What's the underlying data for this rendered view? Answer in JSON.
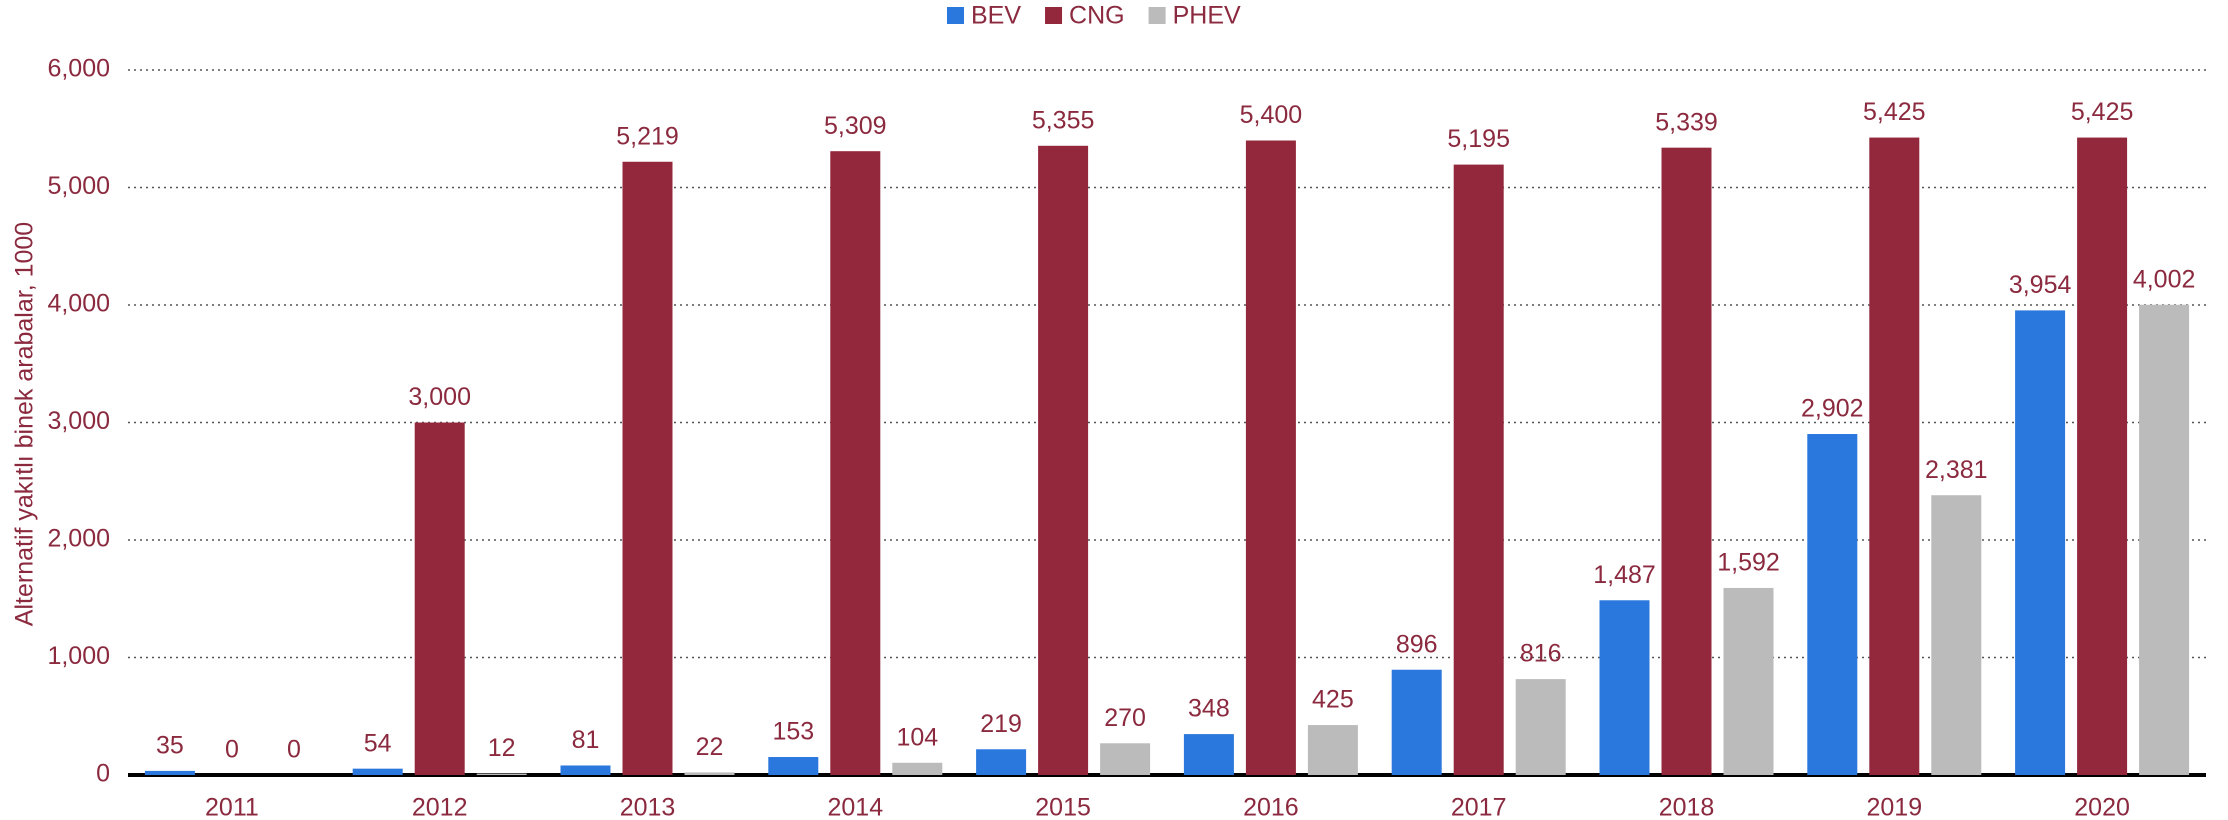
{
  "chart_data": {
    "type": "bar",
    "y_label": "Alternatif yakıtlı binek arabalar, 1000",
    "categories": [
      "2011",
      "2012",
      "2013",
      "2014",
      "2015",
      "2016",
      "2017",
      "2018",
      "2019",
      "2020"
    ],
    "series": [
      {
        "name": "BEV",
        "color": "#2a78dd",
        "values": [
          35,
          54,
          81,
          153,
          219,
          348,
          896,
          1487,
          2902,
          3954
        ],
        "value_labels": [
          "35",
          "54",
          "81",
          "153",
          "219",
          "348",
          "896",
          "1,487",
          "2,902",
          "3,954"
        ]
      },
      {
        "name": "CNG",
        "color": "#93283c",
        "values": [
          0,
          3000,
          5219,
          5309,
          5355,
          5400,
          5195,
          5339,
          5425,
          5425
        ],
        "value_labels": [
          "0",
          "3,000",
          "5,219",
          "5,309",
          "5,355",
          "5,400",
          "5,195",
          "5,339",
          "5,425",
          "5,425"
        ]
      },
      {
        "name": "PHEV",
        "color": "#bbbbbb",
        "values": [
          0,
          12,
          22,
          104,
          270,
          425,
          816,
          1592,
          2381,
          4002
        ],
        "value_labels": [
          "0",
          "12",
          "22",
          "104",
          "270",
          "425",
          "816",
          "1,592",
          "2,381",
          "4,002"
        ]
      }
    ],
    "ylim": [
      0,
      6000
    ],
    "yticks": [
      0,
      {
        "value": 1000,
        "label": "1,000"
      },
      {
        "value": 2000,
        "label": "2,000"
      },
      {
        "value": 3000,
        "label": "3,000"
      },
      {
        "value": 4000,
        "label": "4,000"
      },
      {
        "value": 5000,
        "label": "5,000"
      },
      {
        "value": 6000,
        "label": "6,000"
      }
    ],
    "grid": true,
    "legend": "top"
  }
}
